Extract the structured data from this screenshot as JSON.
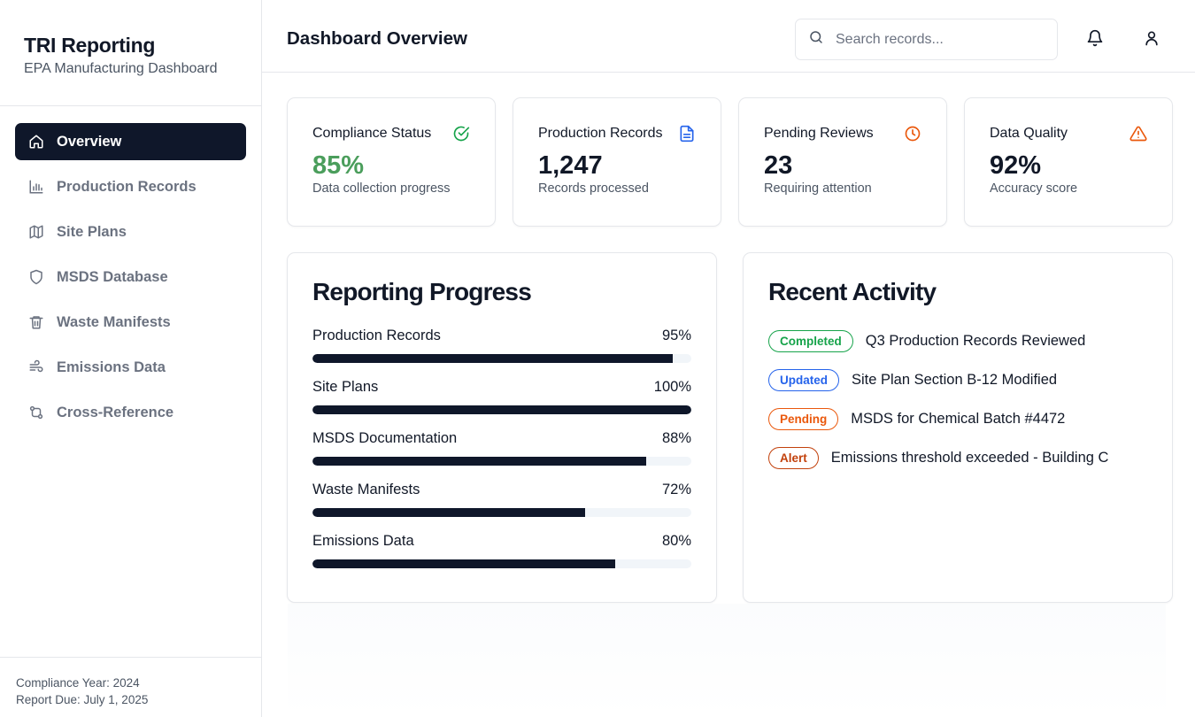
{
  "brand": {
    "title": "TRI Reporting",
    "subtitle": "EPA Manufacturing Dashboard"
  },
  "nav": {
    "items": [
      {
        "label": "Overview",
        "icon": "home-icon",
        "active": true
      },
      {
        "label": "Production Records",
        "icon": "bar-chart-icon"
      },
      {
        "label": "Site Plans",
        "icon": "map-icon"
      },
      {
        "label": "MSDS Database",
        "icon": "shield-icon"
      },
      {
        "label": "Waste Manifests",
        "icon": "trash-icon"
      },
      {
        "label": "Emissions Data",
        "icon": "wind-icon"
      },
      {
        "label": "Cross-Reference",
        "icon": "git-compare-icon"
      }
    ]
  },
  "footer": {
    "year": "Compliance Year: 2024",
    "due": "Report Due: July 1, 2025"
  },
  "header": {
    "title": "Dashboard Overview",
    "search_placeholder": "Search records...",
    "bell_icon": "bell-icon",
    "user_icon": "user-icon"
  },
  "stats": [
    {
      "label": "Compliance Status",
      "value": "85%",
      "sub": "Data collection progress",
      "icon": "check-circle-icon",
      "color": "#16a34a"
    },
    {
      "label": "Production Records",
      "value": "1,247",
      "sub": "Records processed",
      "icon": "file-text-icon",
      "color": "#2563eb"
    },
    {
      "label": "Pending Reviews",
      "value": "23",
      "sub": "Requiring attention",
      "icon": "clock-icon",
      "color": "#ea580c"
    },
    {
      "label": "Data Quality",
      "value": "92%",
      "sub": "Accuracy score",
      "icon": "alert-triangle-icon",
      "color": "#ea580c"
    }
  ],
  "progress": {
    "title": "Reporting Progress",
    "items": [
      {
        "label": "Production Records",
        "pct": "95%",
        "value": 95
      },
      {
        "label": "Site Plans",
        "pct": "100%",
        "value": 100
      },
      {
        "label": "MSDS Documentation",
        "pct": "88%",
        "value": 88
      },
      {
        "label": "Waste Manifests",
        "pct": "72%",
        "value": 72
      },
      {
        "label": "Emissions Data",
        "pct": "80%",
        "value": 80
      }
    ]
  },
  "activity": {
    "title": "Recent Activity",
    "items": [
      {
        "badge": "Completed",
        "text": "Q3 Production Records Reviewed",
        "color": "#16a34a"
      },
      {
        "badge": "Updated",
        "text": "Site Plan Section B-12 Modified",
        "color": "#2563eb"
      },
      {
        "badge": "Pending",
        "text": "MSDS for Chemical Batch #4472",
        "color": "#ea580c"
      },
      {
        "badge": "Alert",
        "text": "Emissions threshold exceeded - Building C",
        "color": "#c2410c"
      }
    ]
  }
}
